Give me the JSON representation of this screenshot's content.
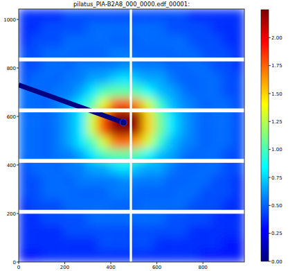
{
  "chart_data": {
    "type": "heatmap",
    "title": "pilatus_PIA-B2A8_000_0000.edf_00001:",
    "xlim": [
      0,
      980
    ],
    "ylim": [
      0,
      1043
    ],
    "xticks": [
      0,
      200,
      400,
      600,
      800
    ],
    "yticks": [
      0,
      200,
      400,
      600,
      800,
      1000
    ],
    "x_edges": [
      0,
      49,
      98,
      147,
      196,
      245,
      294,
      343,
      392,
      441,
      490,
      539,
      588,
      637,
      686,
      735,
      784,
      833,
      882,
      931,
      980
    ],
    "y_edges": [
      0,
      52.15,
      104.3,
      156.45,
      208.6,
      260.75,
      312.9,
      365.05,
      417.2,
      469.35,
      521.5,
      573.65,
      625.8,
      677.95,
      730.1,
      782.25,
      834.4,
      886.55,
      938.7,
      990.85,
      1043
    ],
    "z": [
      [
        0.33,
        0.33,
        0.38,
        0.38,
        0.38,
        0.38,
        0.38,
        0.38,
        0.38,
        0.38,
        0.38,
        0.38,
        0.38,
        0.38,
        0.38,
        0.38,
        0.33,
        0.33,
        0.33,
        0.33
      ],
      [
        0.38,
        0.38,
        0.38,
        0.38,
        0.38,
        0.38,
        0.38,
        0.45,
        0.45,
        0.45,
        0.45,
        0.45,
        0.38,
        0.38,
        0.38,
        0.38,
        0.38,
        0.38,
        0.33,
        0.33
      ],
      [
        0.38,
        0.38,
        0.38,
        0.38,
        0.45,
        0.45,
        0.45,
        0.45,
        0.45,
        0.45,
        0.45,
        0.45,
        0.45,
        0.45,
        0.45,
        0.38,
        0.38,
        0.38,
        0.38,
        0.38
      ],
      [
        0.38,
        0.38,
        0.45,
        0.45,
        0.45,
        0.45,
        0.52,
        0.52,
        0.52,
        0.52,
        0.52,
        0.52,
        0.52,
        0.45,
        0.45,
        0.45,
        0.45,
        0.38,
        0.38,
        0.38
      ],
      [
        0.38,
        0.45,
        0.45,
        0.45,
        0.52,
        0.52,
        0.52,
        0.52,
        0.5,
        0.5,
        0.5,
        0.52,
        0.52,
        0.52,
        0.52,
        0.45,
        0.45,
        0.45,
        0.38,
        0.38
      ],
      [
        0.45,
        0.45,
        0.52,
        0.52,
        0.52,
        0.5,
        0.5,
        0.5,
        0.55,
        0.55,
        0.5,
        0.5,
        0.5,
        0.5,
        0.52,
        0.52,
        0.45,
        0.45,
        0.45,
        0.38
      ],
      [
        0.45,
        0.45,
        0.52,
        0.52,
        0.5,
        0.55,
        0.55,
        0.55,
        0.55,
        0.6,
        0.55,
        0.55,
        0.55,
        0.5,
        0.5,
        0.52,
        0.52,
        0.45,
        0.45,
        0.38
      ],
      [
        0.45,
        0.52,
        0.52,
        0.5,
        0.55,
        0.55,
        0.65,
        0.65,
        0.75,
        0.8,
        0.7,
        0.65,
        0.65,
        0.55,
        0.5,
        0.5,
        0.52,
        0.52,
        0.45,
        0.45
      ],
      [
        0.52,
        0.52,
        0.5,
        0.55,
        0.55,
        0.65,
        0.8,
        1.0,
        1.05,
        1.05,
        1.0,
        0.85,
        0.7,
        0.65,
        0.55,
        0.5,
        0.52,
        0.52,
        0.45,
        0.45
      ],
      [
        0.52,
        0.52,
        0.5,
        0.55,
        0.65,
        0.8,
        1.0,
        1.3,
        1.7,
        1.75,
        1.6,
        1.3,
        0.95,
        0.7,
        0.6,
        0.55,
        0.5,
        0.52,
        0.52,
        0.45
      ],
      [
        0.52,
        0.52,
        0.5,
        0.55,
        0.65,
        0.8,
        1.3,
        1.8,
        2.2,
        2.3,
        2.15,
        1.5,
        1.1,
        0.8,
        0.65,
        0.55,
        0.5,
        0.52,
        0.52,
        0.45
      ],
      [
        0.52,
        0.52,
        0.5,
        0.55,
        0.65,
        0.8,
        1.3,
        1.8,
        2.25,
        2.3,
        2.2,
        1.5,
        1.1,
        0.8,
        0.65,
        0.55,
        0.5,
        0.52,
        0.52,
        0.45
      ],
      [
        0.52,
        0.52,
        0.5,
        0.55,
        0.65,
        0.8,
        1.0,
        1.35,
        1.75,
        1.8,
        1.65,
        1.3,
        0.95,
        0.7,
        0.6,
        0.55,
        0.5,
        0.52,
        0.52,
        0.45
      ],
      [
        0.52,
        0.52,
        0.5,
        0.55,
        0.55,
        0.65,
        0.8,
        1.0,
        1.05,
        1.05,
        1.0,
        0.85,
        0.7,
        0.65,
        0.55,
        0.5,
        0.52,
        0.52,
        0.45,
        0.45
      ],
      [
        0.45,
        0.52,
        0.52,
        0.5,
        0.55,
        0.55,
        0.65,
        0.65,
        0.75,
        0.8,
        0.7,
        0.65,
        0.65,
        0.55,
        0.5,
        0.5,
        0.52,
        0.52,
        0.45,
        0.45
      ],
      [
        0.45,
        0.45,
        0.52,
        0.52,
        0.5,
        0.55,
        0.55,
        0.55,
        0.55,
        0.6,
        0.55,
        0.55,
        0.55,
        0.5,
        0.5,
        0.52,
        0.52,
        0.45,
        0.45,
        0.38
      ],
      [
        0.45,
        0.45,
        0.52,
        0.52,
        0.52,
        0.5,
        0.5,
        0.5,
        0.55,
        0.55,
        0.5,
        0.5,
        0.5,
        0.5,
        0.52,
        0.52,
        0.45,
        0.45,
        0.45,
        0.38
      ],
      [
        0.38,
        0.45,
        0.45,
        0.45,
        0.52,
        0.52,
        0.52,
        0.52,
        0.5,
        0.5,
        0.5,
        0.52,
        0.52,
        0.52,
        0.52,
        0.45,
        0.45,
        0.45,
        0.38,
        0.38
      ],
      [
        0.38,
        0.38,
        0.45,
        0.45,
        0.45,
        0.45,
        0.52,
        0.52,
        0.52,
        0.52,
        0.52,
        0.52,
        0.52,
        0.45,
        0.45,
        0.45,
        0.45,
        0.38,
        0.38,
        0.38
      ],
      [
        0.38,
        0.38,
        0.38,
        0.38,
        0.45,
        0.45,
        0.45,
        0.45,
        0.45,
        0.45,
        0.45,
        0.45,
        0.45,
        0.45,
        0.45,
        0.38,
        0.38,
        0.38,
        0.38,
        0.38
      ]
    ],
    "beamstop": {
      "x": [
        0,
        455
      ],
      "y": [
        730,
        575
      ],
      "value": 0
    },
    "gaps_y": [
      [
        199,
        215
      ],
      [
        409,
        425
      ],
      [
        617,
        633
      ],
      [
        827,
        843
      ]
    ],
    "gaps_x": [
      [
        482,
        492
      ]
    ],
    "colorbar": {
      "range": [
        0,
        2.25
      ],
      "ticks": [
        {
          "value": 0,
          "label": "0.00"
        },
        {
          "value": 0.25,
          "label": "0.25"
        },
        {
          "value": 0.5,
          "label": "0.50"
        },
        {
          "value": 0.75,
          "label": "0.75"
        },
        {
          "value": 1,
          "label": "1.00"
        },
        {
          "value": 1.25,
          "label": "1.25"
        },
        {
          "value": 1.5,
          "label": "1.50"
        },
        {
          "value": 1.75,
          "label": "1.75"
        },
        {
          "value": 2,
          "label": "2.00"
        }
      ]
    }
  }
}
